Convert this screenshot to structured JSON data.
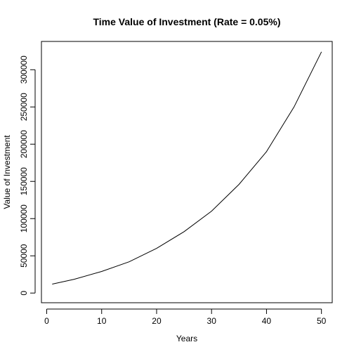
{
  "chart_data": {
    "type": "line",
    "title": "Time Value of Investment (Rate = 0.05%)",
    "xlabel": "Years",
    "ylabel": "Value of Investment",
    "xlim": [
      1,
      50
    ],
    "ylim": [
      0,
      325000
    ],
    "x_ticks": [
      0,
      10,
      20,
      30,
      40,
      50
    ],
    "y_ticks": [
      0,
      50000,
      100000,
      150000,
      200000,
      250000,
      300000
    ],
    "x_tick_labels": [
      "0",
      "10",
      "20",
      "30",
      "40",
      "50"
    ],
    "y_tick_labels": [
      "0",
      "50000",
      "100000",
      "150000",
      "200000",
      "250000",
      "300000"
    ],
    "grid": false,
    "series": [
      {
        "x": [
          1,
          5,
          10,
          15,
          20,
          25,
          30,
          35,
          40,
          45,
          50
        ],
        "values": [
          12000,
          18500,
          29000,
          42000,
          60000,
          82500,
          110000,
          146000,
          190000,
          250000,
          324000
        ]
      }
    ]
  }
}
